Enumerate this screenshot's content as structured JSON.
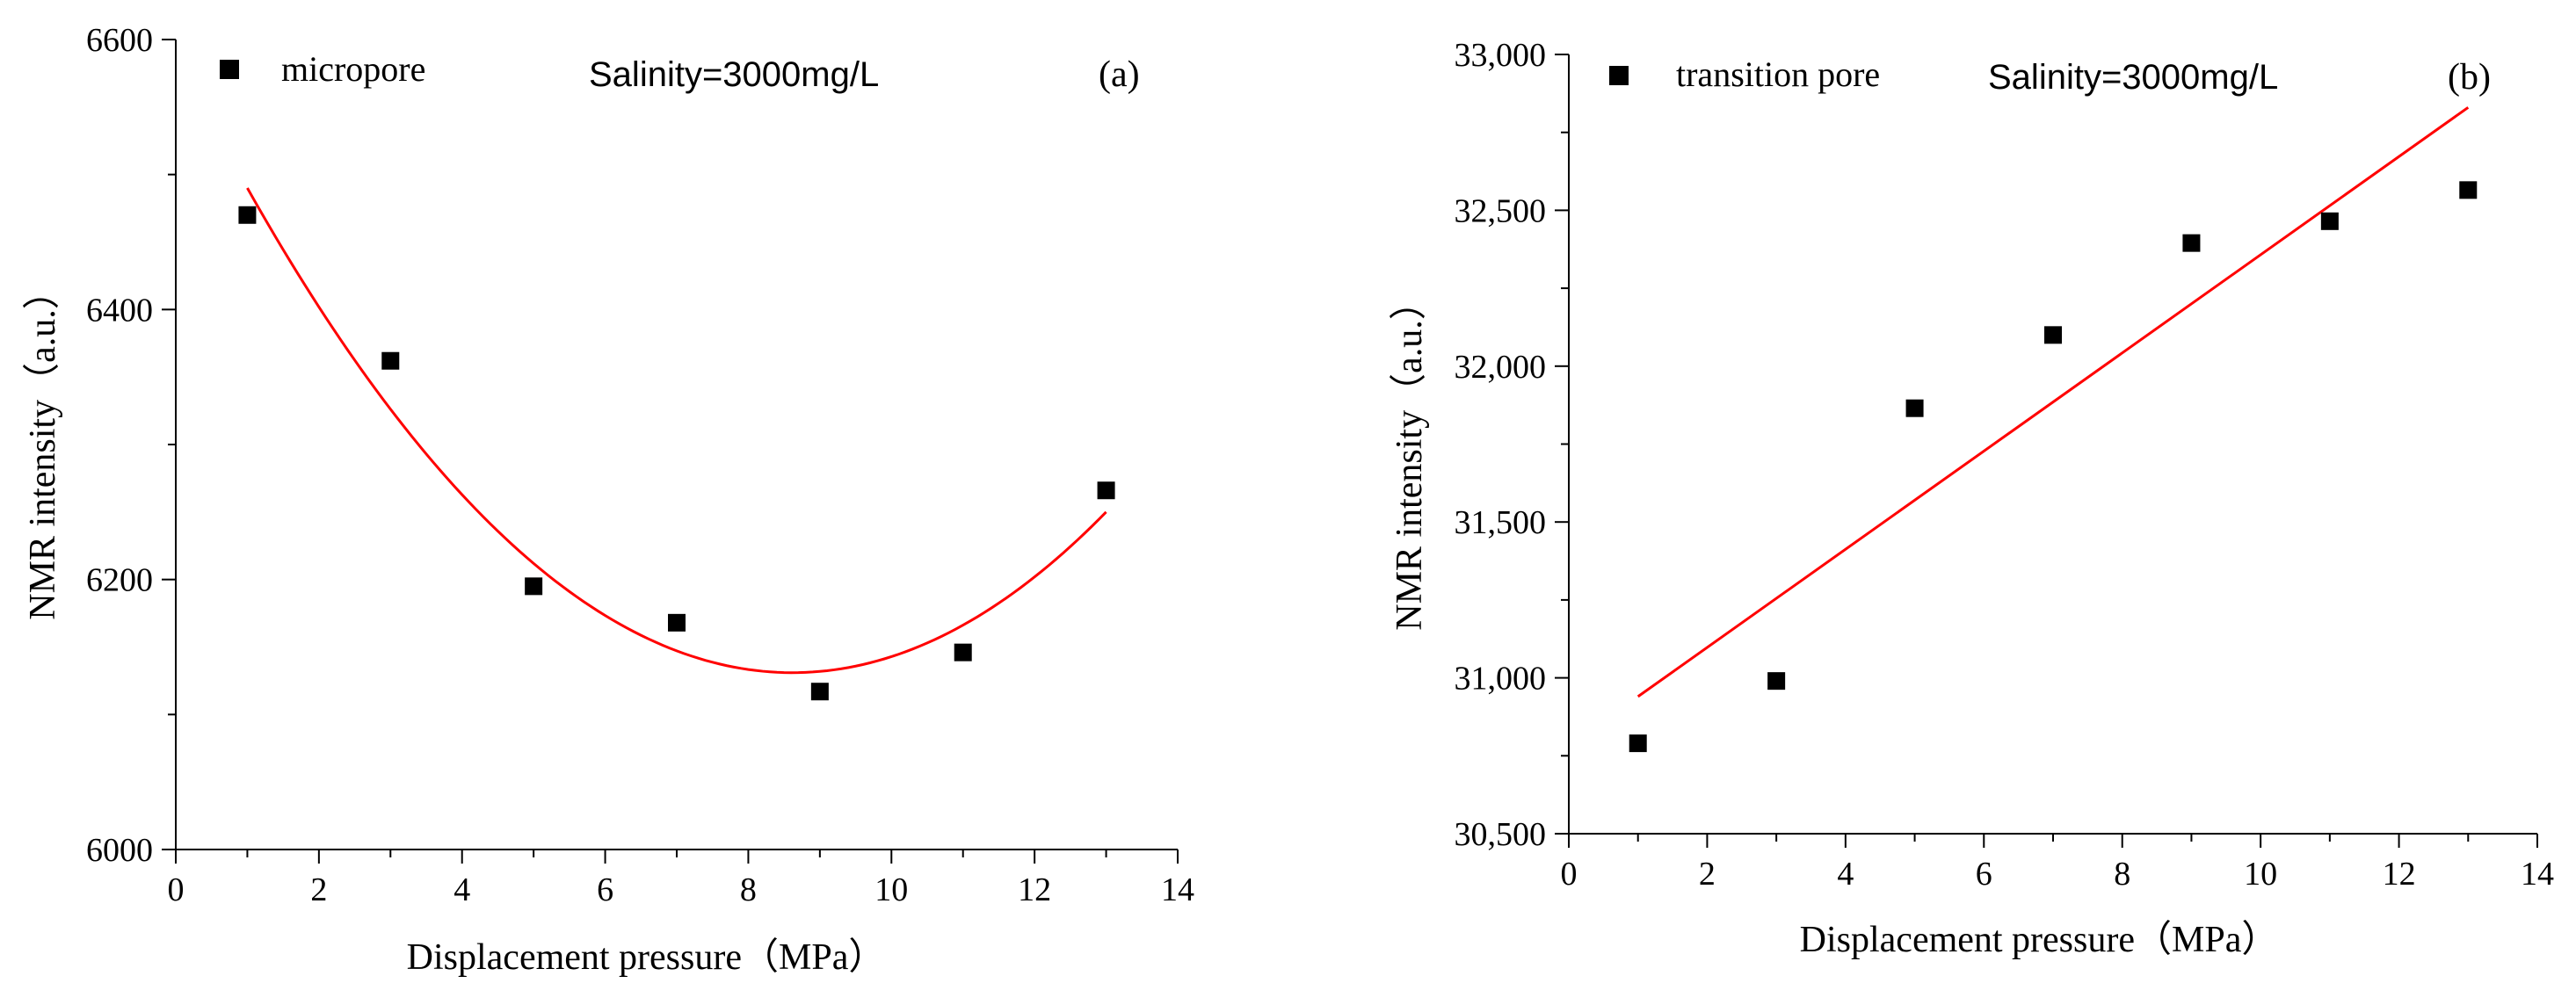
{
  "chart_data": [
    {
      "type": "scatter",
      "panel_label": "(a)",
      "annotation": "Salinity=3000mg/L",
      "xlabel": "Displacement pressure（MPa）",
      "ylabel": "NMR intensity（a.u.）",
      "xlim": [
        0,
        14
      ],
      "ylim": [
        6000,
        6600
      ],
      "xticks": [
        "0",
        "2",
        "4",
        "6",
        "8",
        "10",
        "12",
        "14"
      ],
      "yticks": [
        "6000",
        "6200",
        "6400",
        "6600"
      ],
      "legend": "micropore",
      "legend_position": "top-left",
      "points": {
        "x": [
          1,
          3,
          5,
          7,
          9,
          11,
          13
        ],
        "y": [
          6470,
          6362,
          6195,
          6168,
          6117,
          6146,
          6266
        ]
      },
      "fit": {
        "kind": "quadratic",
        "x_range": [
          1,
          13
        ],
        "y_samples": {
          "x": [
            1,
            8.6,
            13
          ],
          "y": [
            6490,
            6131,
            6250
          ]
        },
        "color": "#ff0000"
      },
      "marker_color": "#000000"
    },
    {
      "type": "scatter",
      "panel_label": "(b)",
      "annotation": "Salinity=3000mg/L",
      "xlabel": "Displacement pressure（MPa）",
      "ylabel": "NMR intensity（a.u.）",
      "xlim": [
        0,
        14
      ],
      "ylim": [
        30500,
        33000
      ],
      "xticks": [
        "0",
        "2",
        "4",
        "6",
        "8",
        "10",
        "12",
        "14"
      ],
      "yticks": [
        "30,500",
        "31,000",
        "31,500",
        "32,000",
        "32,500",
        "33,000"
      ],
      "legend": "transition pore",
      "legend_position": "top-left",
      "points": {
        "x": [
          1,
          3,
          5,
          7,
          9,
          11,
          13
        ],
        "y": [
          30790,
          30990,
          31865,
          32100,
          32395,
          32465,
          32565
        ]
      },
      "fit": {
        "kind": "linear",
        "x_range": [
          1,
          13
        ],
        "y_endpoints": [
          30940,
          32830
        ],
        "color": "#ff0000"
      },
      "marker_color": "#000000"
    }
  ]
}
